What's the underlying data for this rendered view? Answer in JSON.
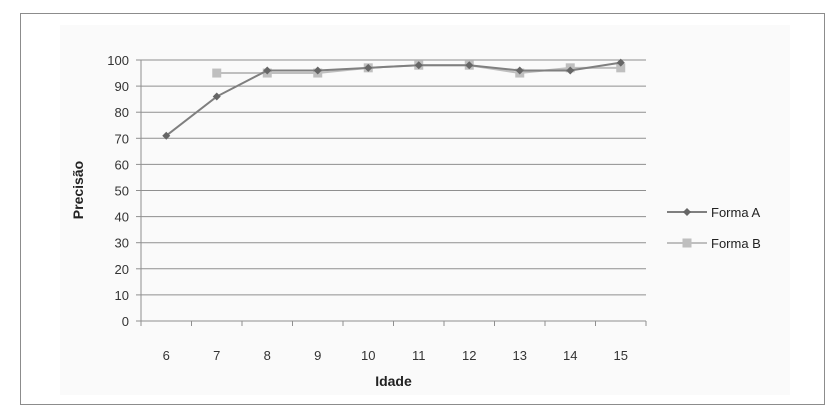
{
  "chart_data": {
    "type": "line",
    "title": "",
    "xlabel": "Idade",
    "ylabel": "Precisão",
    "categories": [
      "6",
      "7",
      "8",
      "9",
      "10",
      "11",
      "12",
      "13",
      "14",
      "15"
    ],
    "ylim": [
      0,
      100
    ],
    "yticks": [
      0,
      10,
      20,
      30,
      40,
      50,
      60,
      70,
      80,
      90,
      100
    ],
    "grid": true,
    "legend_position": "right",
    "series": [
      {
        "name": "Forma A",
        "marker": "diamond",
        "color": "#7f7f7f",
        "values": [
          71,
          86,
          96,
          96,
          97,
          98,
          98,
          96,
          96,
          99
        ]
      },
      {
        "name": "Forma B",
        "marker": "square",
        "color": "#bfbfbf",
        "values": [
          null,
          95,
          95,
          95,
          97,
          98,
          98,
          95,
          97,
          97
        ]
      }
    ]
  }
}
